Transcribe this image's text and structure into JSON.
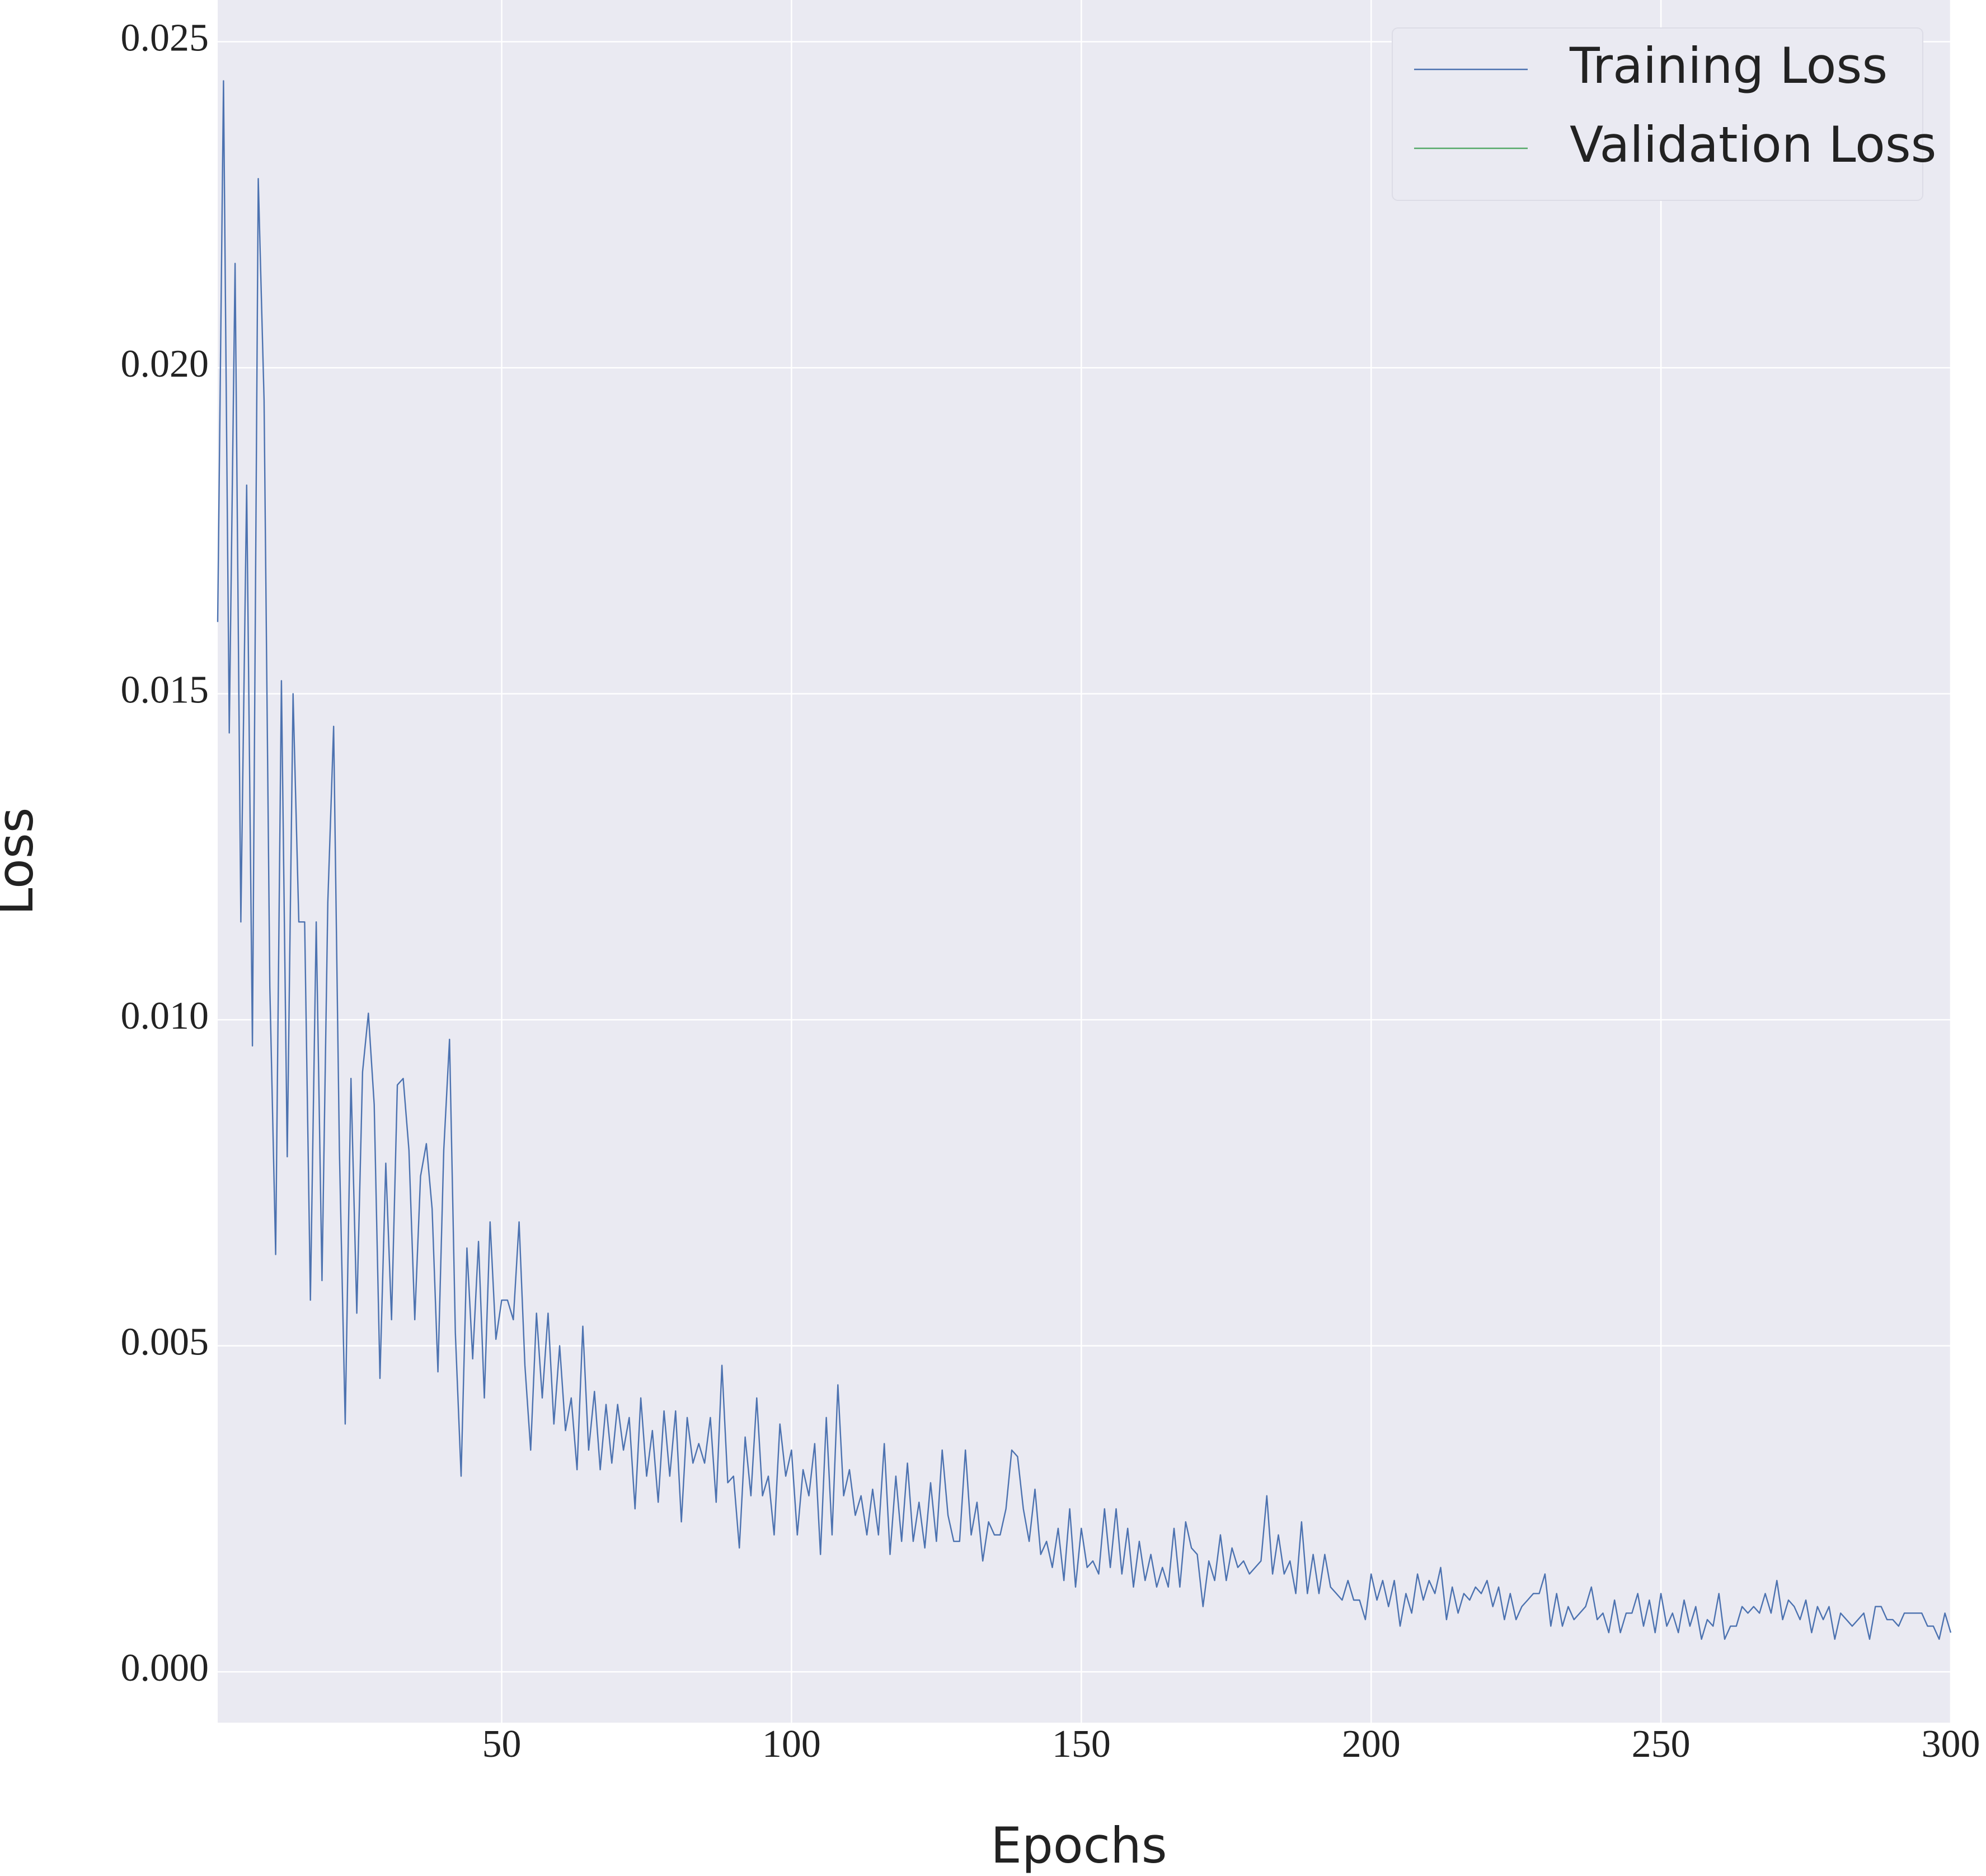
{
  "chart_data": {
    "type": "line",
    "x_label": "Epochs",
    "y_label": "Loss",
    "xlim": [
      1,
      300
    ],
    "ylim": [
      -0.00078,
      0.02564
    ],
    "xticks": [
      50,
      100,
      150,
      200,
      250,
      300
    ],
    "yticks": [
      {
        "value": 0,
        "label": "0.000"
      },
      0.005,
      {
        "value": 0.01,
        "label": "0.010"
      },
      0.015,
      {
        "value": 0.02,
        "label": "0.020"
      },
      0.025
    ],
    "grid": true,
    "legend": "upper right",
    "series": [
      {
        "name": "Training Loss",
        "color": "#4c72b0",
        "x": [
          1,
          2,
          3,
          4,
          5,
          6,
          7,
          8,
          9,
          10,
          11,
          12,
          13,
          14,
          15,
          16,
          17,
          18,
          19,
          20,
          21,
          22,
          23,
          24,
          25,
          26,
          27,
          28,
          29,
          30,
          31,
          32,
          33,
          34,
          35,
          36,
          37,
          38,
          39,
          40,
          41,
          42,
          43,
          44,
          45,
          46,
          47,
          48,
          49,
          50,
          51,
          52,
          53,
          54,
          55,
          56,
          57,
          58,
          59,
          60,
          61,
          62,
          63,
          64,
          65,
          66,
          67,
          68,
          69,
          70,
          71,
          72,
          73,
          74,
          75,
          76,
          77,
          78,
          79,
          80,
          81,
          82,
          83,
          84,
          85,
          86,
          87,
          88,
          89,
          90,
          91,
          92,
          93,
          94,
          95,
          96,
          97,
          98,
          99,
          100,
          101,
          102,
          103,
          104,
          105,
          106,
          107,
          108,
          109,
          110,
          111,
          112,
          113,
          114,
          115,
          116,
          117,
          118,
          119,
          120,
          121,
          122,
          123,
          124,
          125,
          126,
          127,
          128,
          129,
          130,
          131,
          132,
          133,
          134,
          135,
          136,
          137,
          138,
          139,
          140,
          141,
          142,
          143,
          144,
          145,
          146,
          147,
          148,
          149,
          150,
          151,
          152,
          153,
          154,
          155,
          156,
          157,
          158,
          159,
          160,
          161,
          162,
          163,
          164,
          165,
          166,
          167,
          168,
          169,
          170,
          171,
          172,
          173,
          174,
          175,
          176,
          177,
          178,
          179,
          180,
          181,
          182,
          183,
          184,
          185,
          186,
          187,
          188,
          189,
          190,
          191,
          192,
          193,
          194,
          195,
          196,
          197,
          198,
          199,
          200,
          201,
          202,
          203,
          204,
          205,
          206,
          207,
          208,
          209,
          210,
          211,
          212,
          213,
          214,
          215,
          216,
          217,
          218,
          219,
          220,
          221,
          222,
          223,
          224,
          225,
          226,
          227,
          228,
          229,
          230,
          231,
          232,
          233,
          234,
          235,
          236,
          237,
          238,
          239,
          240,
          241,
          242,
          243,
          244,
          245,
          246,
          247,
          248,
          249,
          250,
          251,
          252,
          253,
          254,
          255,
          256,
          257,
          258,
          259,
          260,
          261,
          262,
          263,
          264,
          265,
          266,
          267,
          268,
          269,
          270,
          271,
          272,
          273,
          274,
          275,
          276,
          277,
          278,
          279,
          280,
          281,
          282,
          283,
          284,
          285,
          286,
          287,
          288,
          289,
          290,
          291,
          292,
          293,
          294,
          295,
          296,
          297,
          298,
          299,
          300
        ],
        "values": [
          0.0161,
          0.0244,
          0.0144,
          0.0216,
          0.0115,
          0.0182,
          0.0096,
          0.0229,
          0.0195,
          0.0105,
          0.0064,
          0.0152,
          0.0079,
          0.015,
          0.0115,
          0.0115,
          0.0057,
          0.0115,
          0.006,
          0.0118,
          0.0145,
          0.008,
          0.0038,
          0.0091,
          0.0055,
          0.0092,
          0.0101,
          0.0087,
          0.0045,
          0.0078,
          0.0054,
          0.009,
          0.0091,
          0.008,
          0.0054,
          0.0076,
          0.0081,
          0.0071,
          0.0046,
          0.008,
          0.0097,
          0.0052,
          0.003,
          0.0065,
          0.0048,
          0.0066,
          0.0042,
          0.0069,
          0.0051,
          0.0057,
          0.0057,
          0.0054,
          0.0069,
          0.0047,
          0.0034,
          0.0055,
          0.0042,
          0.0055,
          0.0038,
          0.005,
          0.0037,
          0.0042,
          0.0031,
          0.0053,
          0.0034,
          0.0043,
          0.0031,
          0.0041,
          0.0032,
          0.0041,
          0.0034,
          0.0039,
          0.0025,
          0.0042,
          0.003,
          0.0037,
          0.0026,
          0.004,
          0.003,
          0.004,
          0.0023,
          0.0039,
          0.0032,
          0.0035,
          0.0032,
          0.0039,
          0.0026,
          0.0047,
          0.0029,
          0.003,
          0.0019,
          0.0036,
          0.0027,
          0.0042,
          0.0027,
          0.003,
          0.0021,
          0.0038,
          0.003,
          0.0034,
          0.0021,
          0.0031,
          0.0027,
          0.0035,
          0.0018,
          0.0039,
          0.0021,
          0.0044,
          0.0027,
          0.0031,
          0.0024,
          0.0027,
          0.0021,
          0.0028,
          0.0021,
          0.0035,
          0.0018,
          0.003,
          0.002,
          0.0032,
          0.002,
          0.0026,
          0.0019,
          0.0029,
          0.002,
          0.0034,
          0.0024,
          0.002,
          0.002,
          0.0034,
          0.0021,
          0.0026,
          0.0017,
          0.0023,
          0.0021,
          0.0021,
          0.0025,
          0.0034,
          0.0033,
          0.0025,
          0.002,
          0.0028,
          0.0018,
          0.002,
          0.0016,
          0.0022,
          0.0014,
          0.0025,
          0.0013,
          0.0022,
          0.0016,
          0.0017,
          0.0015,
          0.0025,
          0.0016,
          0.0025,
          0.0015,
          0.0022,
          0.0013,
          0.002,
          0.0014,
          0.0018,
          0.0013,
          0.0016,
          0.0013,
          0.0022,
          0.0013,
          0.0023,
          0.0019,
          0.0018,
          0.001,
          0.0017,
          0.0014,
          0.0021,
          0.0014,
          0.0019,
          0.0016,
          0.0017,
          0.0015,
          0.0016,
          0.0017,
          0.0027,
          0.0015,
          0.0021,
          0.0015,
          0.0017,
          0.0012,
          0.0023,
          0.0012,
          0.0018,
          0.0012,
          0.0018,
          0.0013,
          0.0012,
          0.0011,
          0.0014,
          0.0011,
          0.0011,
          0.0008,
          0.0015,
          0.0011,
          0.0014,
          0.001,
          0.0014,
          0.0007,
          0.0012,
          0.0009,
          0.0015,
          0.0011,
          0.0014,
          0.0012,
          0.0016,
          0.0008,
          0.0013,
          0.0009,
          0.0012,
          0.0011,
          0.0013,
          0.0012,
          0.0014,
          0.001,
          0.0013,
          0.0008,
          0.0012,
          0.0008,
          0.001,
          0.0011,
          0.0012,
          0.0012,
          0.0015,
          0.0007,
          0.0012,
          0.0007,
          0.001,
          0.0008,
          0.0009,
          0.001,
          0.0013,
          0.0008,
          0.0009,
          0.0006,
          0.0011,
          0.0006,
          0.0009,
          0.0009,
          0.0012,
          0.0007,
          0.0011,
          0.0006,
          0.0012,
          0.0007,
          0.0009,
          0.0006,
          0.0011,
          0.0007,
          0.001,
          0.0005,
          0.0008,
          0.0007,
          0.0012,
          0.0005,
          0.0007,
          0.0007,
          0.001,
          0.0009,
          0.001,
          0.0009,
          0.0012,
          0.0009,
          0.0014,
          0.0008,
          0.0011,
          0.001,
          0.0008,
          0.0011,
          0.0006,
          0.001,
          0.0008,
          0.001,
          0.0005,
          0.0009,
          0.0008,
          0.0007,
          0.0008,
          0.0009,
          0.0005,
          0.001,
          0.001,
          0.0008,
          0.0008,
          0.0007,
          0.0009,
          0.0009,
          0.0009,
          0.0009,
          0.0007,
          0.0007,
          0.0005,
          0.0009,
          0.0006
        ]
      },
      {
        "name": "Validation Loss",
        "color": "#55a868",
        "x": [],
        "values": []
      }
    ]
  }
}
